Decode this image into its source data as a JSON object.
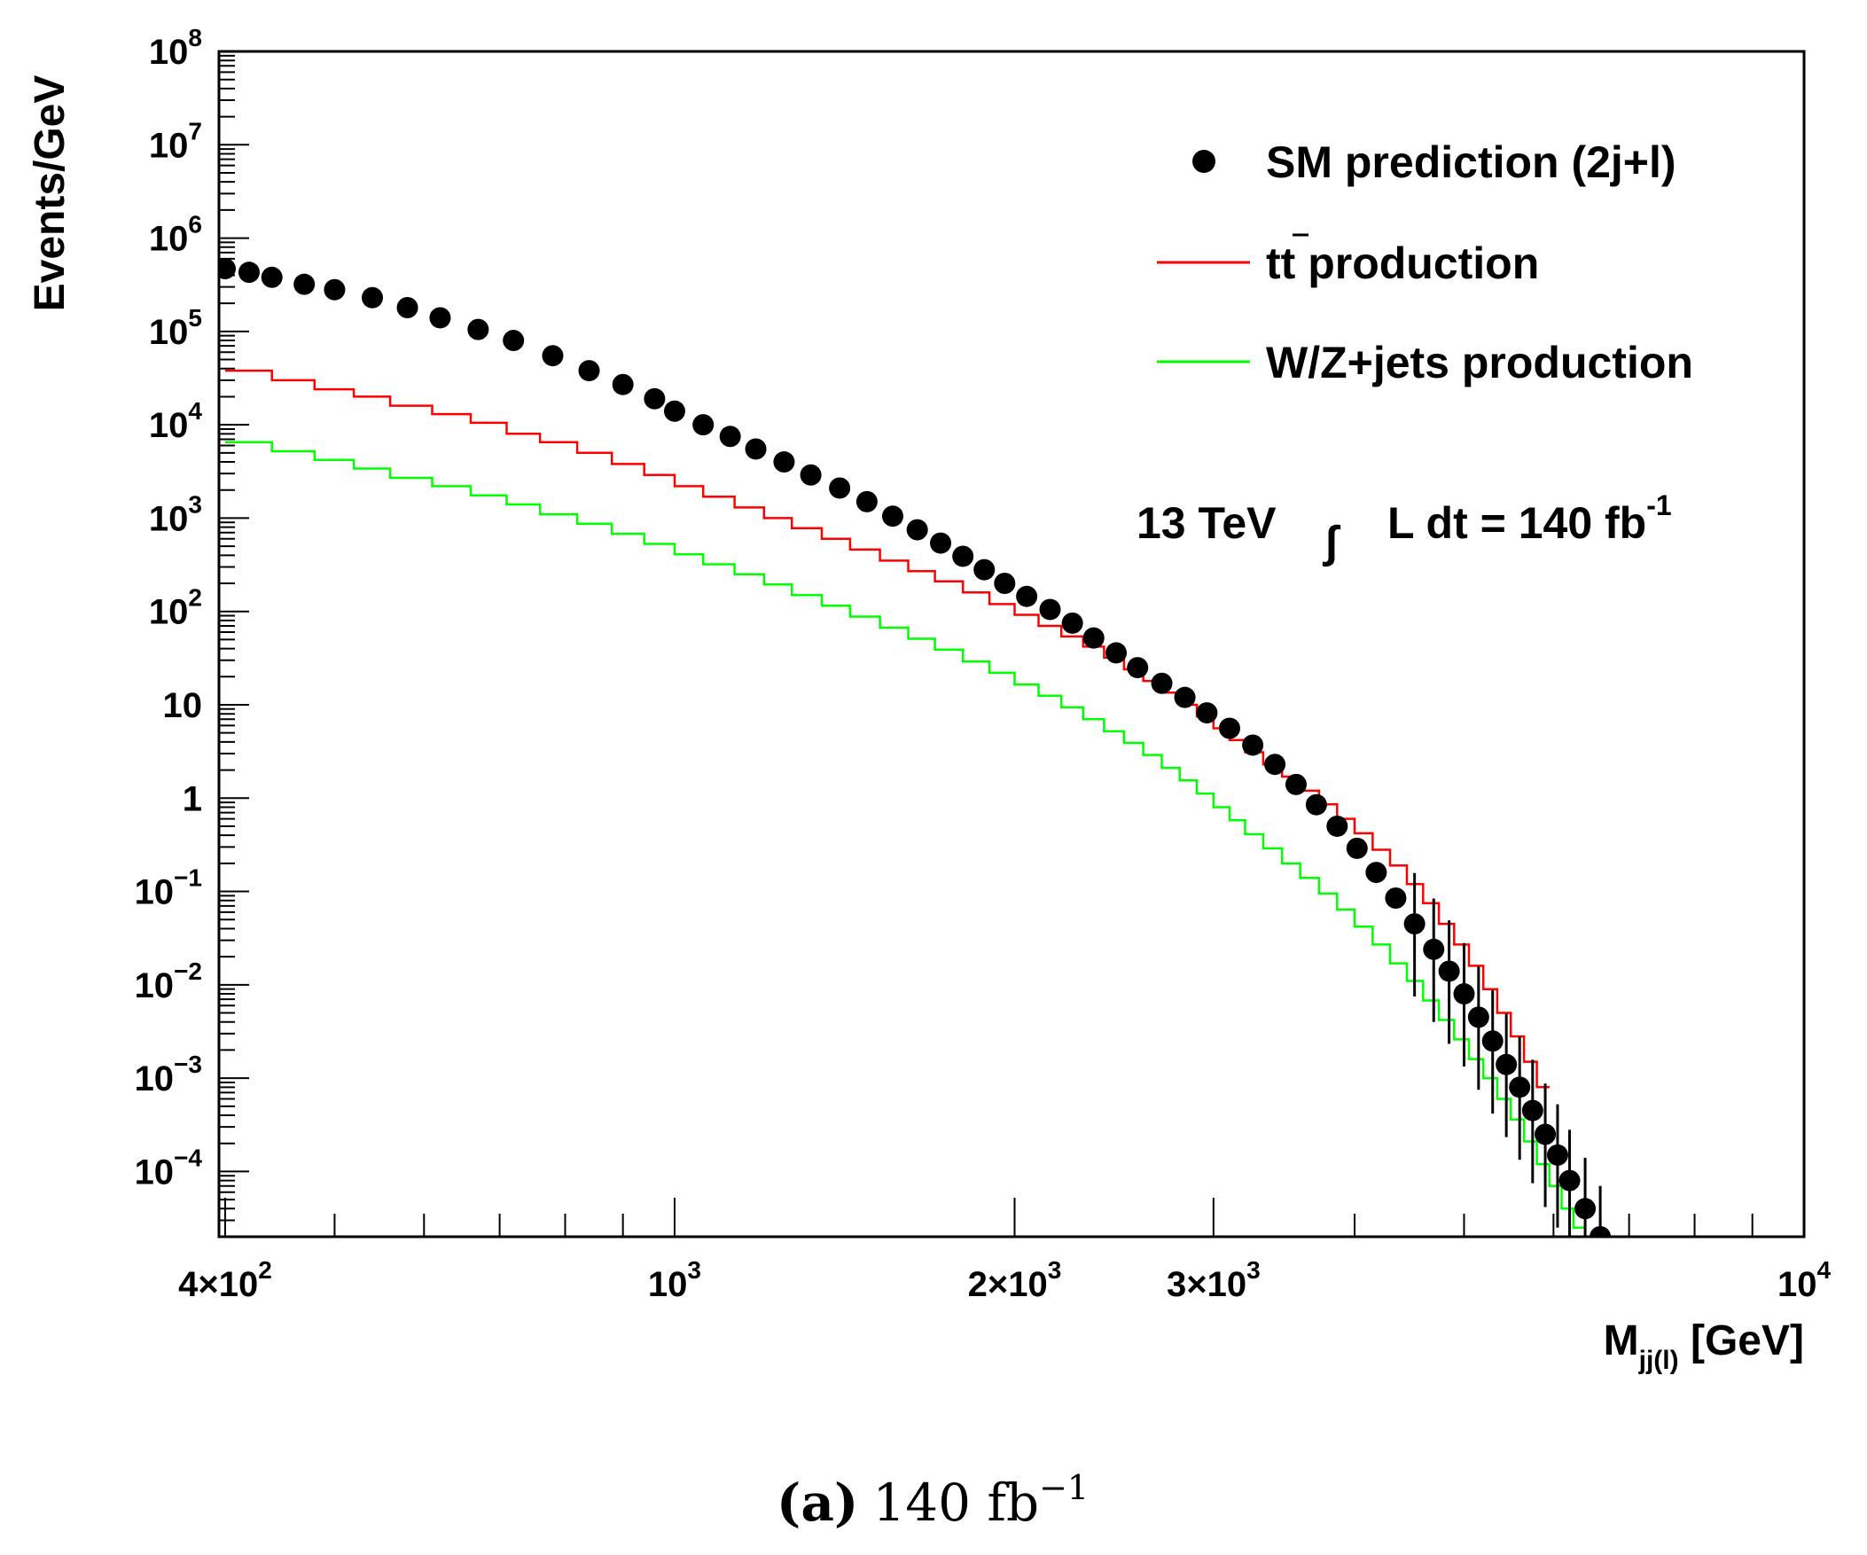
{
  "chart_data": {
    "type": "line",
    "xscale": "log",
    "yscale": "log",
    "xlim": [
      395,
      10000
    ],
    "ylim": [
      2e-05,
      100000000
    ],
    "xlabel": "M",
    "xlabel_subscript": "jj(l)",
    "xlabel_unit": "[GeV]",
    "ylabel": "Events/GeV",
    "x_ticks": [
      {
        "value": 400,
        "mantissa": "4×10",
        "exp": "2"
      },
      {
        "value": 1000,
        "mantissa": "10",
        "exp": "3"
      },
      {
        "value": 2000,
        "mantissa": "2×10",
        "exp": "3"
      },
      {
        "value": 3000,
        "mantissa": "3×10",
        "exp": "3"
      },
      {
        "value": 10000,
        "mantissa": "10",
        "exp": "4"
      }
    ],
    "y_ticks": [
      {
        "value": 100000000,
        "base": "10",
        "exp": "8"
      },
      {
        "value": 10000000,
        "base": "10",
        "exp": "7"
      },
      {
        "value": 1000000,
        "base": "10",
        "exp": "6"
      },
      {
        "value": 100000,
        "base": "10",
        "exp": "5"
      },
      {
        "value": 10000,
        "base": "10",
        "exp": "4"
      },
      {
        "value": 1000,
        "base": "10",
        "exp": "3"
      },
      {
        "value": 100,
        "base": "10",
        "exp": "2"
      },
      {
        "value": 10,
        "base": "10",
        "exp": ""
      },
      {
        "value": 1,
        "base": "1",
        "exp": ""
      },
      {
        "value": 0.1,
        "base": "10",
        "exp": "−1"
      },
      {
        "value": 0.01,
        "base": "10",
        "exp": "−2"
      },
      {
        "value": 0.001,
        "base": "10",
        "exp": "−3"
      },
      {
        "value": 0.0001,
        "base": "10",
        "exp": "−4"
      }
    ],
    "legend": {
      "position": "top-right",
      "entries": [
        {
          "label": "SM prediction (2j+l)",
          "marker": "dot",
          "color": "#000000"
        },
        {
          "label_main": "t",
          "label_bar": "t",
          "label_rest": " production",
          "marker": "line",
          "color": "#ff0000"
        },
        {
          "label": "W/Z+jets production",
          "marker": "line",
          "color": "#00ff00"
        }
      ]
    },
    "annotation": {
      "energy": "13 TeV",
      "integral": "∫",
      "lumi_text": "L dt =  140 fb",
      "lumi_exp": "-1"
    },
    "caption": {
      "label": "(a)",
      "text": "140 fb",
      "exp": "−1"
    },
    "series": [
      {
        "name": "SM prediction (2j+l)",
        "style": "points",
        "color": "#000000",
        "points": [
          [
            400,
            470000
          ],
          [
            420,
            430000
          ],
          [
            440,
            380000
          ],
          [
            470,
            320000
          ],
          [
            500,
            280000
          ],
          [
            540,
            230000
          ],
          [
            580,
            180000
          ],
          [
            620,
            140000
          ],
          [
            670,
            105000
          ],
          [
            720,
            80000
          ],
          [
            780,
            55000
          ],
          [
            840,
            38000
          ],
          [
            900,
            27000
          ],
          [
            960,
            19000
          ],
          [
            1000,
            14000
          ],
          [
            1060,
            10000
          ],
          [
            1120,
            7500
          ],
          [
            1180,
            5500
          ],
          [
            1250,
            4000
          ],
          [
            1320,
            2900
          ],
          [
            1400,
            2100
          ],
          [
            1480,
            1500
          ],
          [
            1560,
            1050
          ],
          [
            1640,
            750
          ],
          [
            1720,
            540
          ],
          [
            1800,
            390
          ],
          [
            1880,
            280
          ],
          [
            1960,
            200
          ],
          [
            2050,
            145
          ],
          [
            2150,
            105
          ],
          [
            2250,
            75
          ],
          [
            2350,
            52
          ],
          [
            2460,
            36
          ],
          [
            2570,
            25
          ],
          [
            2700,
            17
          ],
          [
            2830,
            12
          ],
          [
            2960,
            8.2
          ],
          [
            3100,
            5.6
          ],
          [
            3250,
            3.7
          ],
          [
            3400,
            2.3
          ],
          [
            3550,
            1.4
          ],
          [
            3700,
            0.85
          ],
          [
            3860,
            0.5
          ],
          [
            4020,
            0.29
          ],
          [
            4180,
            0.16
          ],
          [
            4350,
            0.085
          ],
          [
            4520,
            0.045
          ],
          [
            4700,
            0.024
          ],
          [
            4850,
            0.014
          ],
          [
            5000,
            0.008
          ],
          [
            5150,
            0.0045
          ],
          [
            5300,
            0.0025
          ],
          [
            5450,
            0.0014
          ],
          [
            5600,
            0.0008
          ],
          [
            5750,
            0.00045
          ],
          [
            5900,
            0.00025
          ],
          [
            6050,
            0.00015
          ],
          [
            6200,
            8e-05
          ],
          [
            6400,
            4e-05
          ],
          [
            6600,
            2e-05
          ]
        ],
        "error_x_min": 4500
      },
      {
        "name": "tt production",
        "style": "step",
        "color": "#ff0000",
        "points": [
          [
            400,
            38000
          ],
          [
            440,
            30000
          ],
          [
            480,
            24000
          ],
          [
            520,
            20000
          ],
          [
            560,
            16000
          ],
          [
            610,
            13000
          ],
          [
            660,
            10500
          ],
          [
            710,
            8000
          ],
          [
            760,
            6500
          ],
          [
            820,
            5000
          ],
          [
            880,
            3800
          ],
          [
            940,
            2900
          ],
          [
            1000,
            2200
          ],
          [
            1060,
            1700
          ],
          [
            1130,
            1300
          ],
          [
            1200,
            1000
          ],
          [
            1270,
            780
          ],
          [
            1350,
            600
          ],
          [
            1430,
            460
          ],
          [
            1520,
            350
          ],
          [
            1610,
            270
          ],
          [
            1700,
            210
          ],
          [
            1800,
            160
          ],
          [
            1900,
            120
          ],
          [
            2000,
            92
          ],
          [
            2100,
            70
          ],
          [
            2200,
            54
          ],
          [
            2300,
            42
          ],
          [
            2400,
            32
          ],
          [
            2500,
            24
          ],
          [
            2600,
            18
          ],
          [
            2700,
            13.5
          ],
          [
            2800,
            10
          ],
          [
            2900,
            7.5
          ],
          [
            3000,
            5.6
          ],
          [
            3100,
            4.2
          ],
          [
            3200,
            3.1
          ],
          [
            3320,
            2.3
          ],
          [
            3450,
            1.7
          ],
          [
            3580,
            1.2
          ],
          [
            3720,
            0.86
          ],
          [
            3860,
            0.6
          ],
          [
            4000,
            0.42
          ],
          [
            4150,
            0.28
          ],
          [
            4300,
            0.19
          ],
          [
            4450,
            0.12
          ],
          [
            4600,
            0.075
          ],
          [
            4750,
            0.045
          ],
          [
            4900,
            0.027
          ],
          [
            5050,
            0.016
          ],
          [
            5200,
            0.009
          ],
          [
            5350,
            0.005
          ],
          [
            5500,
            0.0028
          ],
          [
            5650,
            0.0015
          ],
          [
            5800,
            0.0008
          ]
        ]
      },
      {
        "name": "W/Z+jets production",
        "style": "step",
        "color": "#00ff00",
        "points": [
          [
            400,
            6500
          ],
          [
            440,
            5200
          ],
          [
            480,
            4200
          ],
          [
            520,
            3400
          ],
          [
            560,
            2700
          ],
          [
            610,
            2200
          ],
          [
            660,
            1750
          ],
          [
            710,
            1400
          ],
          [
            760,
            1100
          ],
          [
            820,
            870
          ],
          [
            880,
            680
          ],
          [
            940,
            530
          ],
          [
            1000,
            410
          ],
          [
            1060,
            320
          ],
          [
            1130,
            250
          ],
          [
            1200,
            195
          ],
          [
            1270,
            150
          ],
          [
            1350,
            115
          ],
          [
            1430,
            88
          ],
          [
            1520,
            67
          ],
          [
            1610,
            51
          ],
          [
            1700,
            39
          ],
          [
            1800,
            29
          ],
          [
            1900,
            22
          ],
          [
            2000,
            16.5
          ],
          [
            2100,
            12.5
          ],
          [
            2200,
            9.4
          ],
          [
            2300,
            7
          ],
          [
            2400,
            5.2
          ],
          [
            2500,
            3.9
          ],
          [
            2600,
            2.9
          ],
          [
            2700,
            2.1
          ],
          [
            2800,
            1.55
          ],
          [
            2900,
            1.12
          ],
          [
            3000,
            0.8
          ],
          [
            3100,
            0.58
          ],
          [
            3200,
            0.41
          ],
          [
            3320,
            0.29
          ],
          [
            3450,
            0.2
          ],
          [
            3580,
            0.14
          ],
          [
            3720,
            0.095
          ],
          [
            3860,
            0.064
          ],
          [
            4000,
            0.042
          ],
          [
            4150,
            0.027
          ],
          [
            4300,
            0.017
          ],
          [
            4450,
            0.011
          ],
          [
            4600,
            0.0068
          ],
          [
            4750,
            0.0042
          ],
          [
            4900,
            0.0026
          ],
          [
            5050,
            0.0016
          ],
          [
            5200,
            0.001
          ],
          [
            5350,
            0.0006
          ],
          [
            5500,
            0.00036
          ],
          [
            5650,
            0.00021
          ],
          [
            5800,
            0.00012
          ],
          [
            5950,
            7e-05
          ],
          [
            6100,
            4e-05
          ],
          [
            6250,
            2.5e-05
          ]
        ]
      }
    ]
  }
}
